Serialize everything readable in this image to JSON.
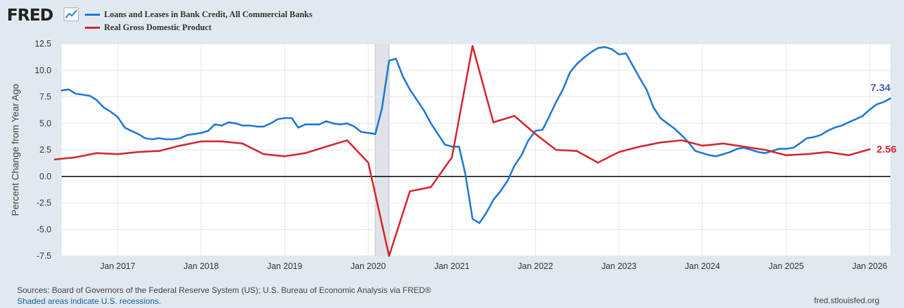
{
  "header": {
    "logo_text": "FRED",
    "logo_icon": "chart-trend-icon"
  },
  "footer": {
    "sources": "Sources: Board of Governors of the Federal Reserve System (US); U.S. Bureau of Economic Analysis via FRED®",
    "recessions_note": "Shaded areas indicate U.S. recessions.",
    "site": "fred.stlouisfed.org"
  },
  "chart_data": {
    "type": "line",
    "title": "",
    "ylabel": "Percent Change from Year Ago",
    "xlabel": "",
    "ylim": [
      -7.5,
      12.5
    ],
    "xlim": [
      "2016-05-01",
      "2026-04-01"
    ],
    "yticks": [
      "12.5",
      "10.0",
      "7.5",
      "5.0",
      "2.5",
      "0.0",
      "-2.5",
      "-5.0",
      "-7.5"
    ],
    "xticks": [
      {
        "label": "Jan 2017",
        "date": "2017-01-01"
      },
      {
        "label": "Jan 2018",
        "date": "2018-01-01"
      },
      {
        "label": "Jan 2019",
        "date": "2019-01-01"
      },
      {
        "label": "Jan 2020",
        "date": "2020-01-01"
      },
      {
        "label": "Jan 2021",
        "date": "2021-01-01"
      },
      {
        "label": "Jan 2022",
        "date": "2022-01-01"
      },
      {
        "label": "Jan 2023",
        "date": "2023-01-01"
      },
      {
        "label": "Jan 2024",
        "date": "2024-01-01"
      },
      {
        "label": "Jan 2025",
        "date": "2025-01-01"
      },
      {
        "label": "Jan 2026",
        "date": "2026-01-01"
      }
    ],
    "grid": true,
    "zero_line": true,
    "recessions": [
      {
        "start": "2020-02-01",
        "end": "2020-04-01"
      }
    ],
    "legend_position": "top-left",
    "series": [
      {
        "name": "Loans and Leases in Bank Credit, All Commercial Banks",
        "color": "#1f77d6",
        "end_label": "7.34",
        "end_label_color": "#4a5bc8",
        "points": [
          [
            "2016-05-01",
            8.1
          ],
          [
            "2016-06-01",
            8.2
          ],
          [
            "2016-07-01",
            7.8
          ],
          [
            "2016-08-01",
            7.7
          ],
          [
            "2016-09-01",
            7.6
          ],
          [
            "2016-10-01",
            7.2
          ],
          [
            "2016-11-01",
            6.5
          ],
          [
            "2016-12-01",
            6.1
          ],
          [
            "2017-01-01",
            5.6
          ],
          [
            "2017-02-01",
            4.6
          ],
          [
            "2017-03-01",
            4.3
          ],
          [
            "2017-04-01",
            4.0
          ],
          [
            "2017-05-01",
            3.6
          ],
          [
            "2017-06-01",
            3.5
          ],
          [
            "2017-07-01",
            3.6
          ],
          [
            "2017-08-01",
            3.5
          ],
          [
            "2017-09-01",
            3.5
          ],
          [
            "2017-10-01",
            3.6
          ],
          [
            "2017-11-01",
            3.9
          ],
          [
            "2017-12-01",
            4.0
          ],
          [
            "2018-01-01",
            4.1
          ],
          [
            "2018-02-01",
            4.3
          ],
          [
            "2018-03-01",
            4.9
          ],
          [
            "2018-04-01",
            4.8
          ],
          [
            "2018-05-01",
            5.1
          ],
          [
            "2018-06-01",
            5.0
          ],
          [
            "2018-07-01",
            4.8
          ],
          [
            "2018-08-01",
            4.8
          ],
          [
            "2018-09-01",
            4.7
          ],
          [
            "2018-10-01",
            4.7
          ],
          [
            "2018-11-01",
            5.0
          ],
          [
            "2018-12-01",
            5.4
          ],
          [
            "2019-01-01",
            5.5
          ],
          [
            "2019-02-01",
            5.5
          ],
          [
            "2019-03-01",
            4.6
          ],
          [
            "2019-04-01",
            4.9
          ],
          [
            "2019-05-01",
            4.9
          ],
          [
            "2019-06-01",
            4.9
          ],
          [
            "2019-07-01",
            5.2
          ],
          [
            "2019-08-01",
            5.0
          ],
          [
            "2019-09-01",
            4.9
          ],
          [
            "2019-10-01",
            5.0
          ],
          [
            "2019-11-01",
            4.7
          ],
          [
            "2019-12-01",
            4.2
          ],
          [
            "2020-01-01",
            4.1
          ],
          [
            "2020-02-01",
            4.0
          ],
          [
            "2020-03-01",
            6.4
          ],
          [
            "2020-04-01",
            10.9
          ],
          [
            "2020-05-01",
            11.1
          ],
          [
            "2020-06-01",
            9.4
          ],
          [
            "2020-07-01",
            8.2
          ],
          [
            "2020-08-01",
            7.2
          ],
          [
            "2020-09-01",
            6.2
          ],
          [
            "2020-10-01",
            5.0
          ],
          [
            "2020-11-01",
            4.0
          ],
          [
            "2020-12-01",
            3.0
          ],
          [
            "2021-01-01",
            2.8
          ],
          [
            "2021-02-01",
            2.8
          ],
          [
            "2021-03-01",
            0.2
          ],
          [
            "2021-04-01",
            -4.0
          ],
          [
            "2021-05-01",
            -4.4
          ],
          [
            "2021-06-01",
            -3.4
          ],
          [
            "2021-07-01",
            -2.2
          ],
          [
            "2021-08-01",
            -1.4
          ],
          [
            "2021-09-01",
            -0.4
          ],
          [
            "2021-10-01",
            1.0
          ],
          [
            "2021-11-01",
            2.0
          ],
          [
            "2021-12-01",
            3.4
          ],
          [
            "2022-01-01",
            4.3
          ],
          [
            "2022-02-01",
            4.4
          ],
          [
            "2022-03-01",
            5.6
          ],
          [
            "2022-04-01",
            7.0
          ],
          [
            "2022-05-01",
            8.2
          ],
          [
            "2022-06-01",
            9.8
          ],
          [
            "2022-07-01",
            10.6
          ],
          [
            "2022-08-01",
            11.2
          ],
          [
            "2022-09-01",
            11.7
          ],
          [
            "2022-10-01",
            12.1
          ],
          [
            "2022-11-01",
            12.2
          ],
          [
            "2022-12-01",
            12.0
          ],
          [
            "2023-01-01",
            11.5
          ],
          [
            "2023-02-01",
            11.6
          ],
          [
            "2023-03-01",
            10.5
          ],
          [
            "2023-04-01",
            9.3
          ],
          [
            "2023-05-01",
            8.2
          ],
          [
            "2023-06-01",
            6.5
          ],
          [
            "2023-07-01",
            5.5
          ],
          [
            "2023-08-01",
            5.0
          ],
          [
            "2023-09-01",
            4.5
          ],
          [
            "2023-10-01",
            3.9
          ],
          [
            "2023-11-01",
            3.2
          ],
          [
            "2023-12-01",
            2.4
          ],
          [
            "2024-01-01",
            2.2
          ],
          [
            "2024-02-01",
            2.0
          ],
          [
            "2024-03-01",
            1.9
          ],
          [
            "2024-04-01",
            2.1
          ],
          [
            "2024-05-01",
            2.3
          ],
          [
            "2024-06-01",
            2.6
          ],
          [
            "2024-07-01",
            2.7
          ],
          [
            "2024-08-01",
            2.5
          ],
          [
            "2024-09-01",
            2.3
          ],
          [
            "2024-10-01",
            2.2
          ],
          [
            "2024-11-01",
            2.4
          ],
          [
            "2024-12-01",
            2.6
          ],
          [
            "2025-01-01",
            2.6
          ],
          [
            "2025-02-01",
            2.7
          ],
          [
            "2025-03-01",
            3.1
          ],
          [
            "2025-04-01",
            3.6
          ],
          [
            "2025-05-01",
            3.7
          ],
          [
            "2025-06-01",
            3.9
          ],
          [
            "2025-07-01",
            4.3
          ],
          [
            "2025-08-01",
            4.6
          ],
          [
            "2025-09-01",
            4.8
          ],
          [
            "2025-10-01",
            5.1
          ],
          [
            "2025-11-01",
            5.4
          ],
          [
            "2025-12-01",
            5.7
          ],
          [
            "2026-01-01",
            6.3
          ],
          [
            "2026-02-01",
            6.8
          ],
          [
            "2026-03-01",
            7.0
          ],
          [
            "2026-04-01",
            7.34
          ]
        ]
      },
      {
        "name": "Real Gross Domestic Product",
        "color": "#d2272e",
        "end_label": "2.56",
        "end_label_color": "#d2272e",
        "points": [
          [
            "2016-04-01",
            1.6
          ],
          [
            "2016-07-01",
            1.8
          ],
          [
            "2016-10-01",
            2.2
          ],
          [
            "2017-01-01",
            2.1
          ],
          [
            "2017-04-01",
            2.3
          ],
          [
            "2017-07-01",
            2.4
          ],
          [
            "2017-10-01",
            2.9
          ],
          [
            "2018-01-01",
            3.3
          ],
          [
            "2018-04-01",
            3.3
          ],
          [
            "2018-07-01",
            3.1
          ],
          [
            "2018-10-01",
            2.1
          ],
          [
            "2019-01-01",
            1.9
          ],
          [
            "2019-04-01",
            2.2
          ],
          [
            "2019-07-01",
            2.8
          ],
          [
            "2019-10-01",
            3.4
          ],
          [
            "2020-01-01",
            1.3
          ],
          [
            "2020-04-01",
            -7.5
          ],
          [
            "2020-07-01",
            -1.4
          ],
          [
            "2020-10-01",
            -1.0
          ],
          [
            "2021-01-01",
            1.8
          ],
          [
            "2021-04-01",
            12.3
          ],
          [
            "2021-07-01",
            5.1
          ],
          [
            "2021-10-01",
            5.7
          ],
          [
            "2022-01-01",
            4.0
          ],
          [
            "2022-04-01",
            2.5
          ],
          [
            "2022-07-01",
            2.4
          ],
          [
            "2022-10-01",
            1.3
          ],
          [
            "2023-01-01",
            2.3
          ],
          [
            "2023-04-01",
            2.8
          ],
          [
            "2023-07-01",
            3.2
          ],
          [
            "2023-10-01",
            3.4
          ],
          [
            "2024-01-01",
            2.9
          ],
          [
            "2024-04-01",
            3.1
          ],
          [
            "2024-07-01",
            2.8
          ],
          [
            "2024-10-01",
            2.5
          ],
          [
            "2025-01-01",
            2.0
          ],
          [
            "2025-04-01",
            2.1
          ],
          [
            "2025-07-01",
            2.3
          ],
          [
            "2025-10-01",
            2.0
          ],
          [
            "2026-01-01",
            2.56
          ]
        ]
      }
    ]
  }
}
